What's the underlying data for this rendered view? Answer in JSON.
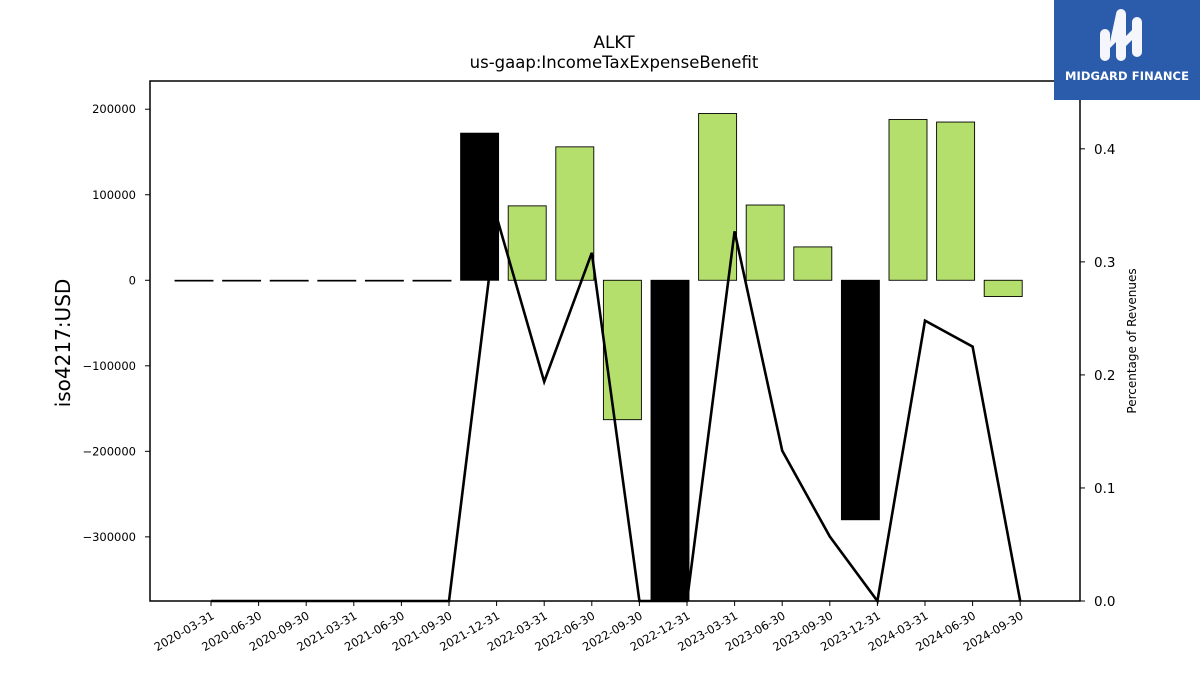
{
  "chart_data": {
    "type": "bar",
    "title": "ALKT",
    "subtitle": "us-gaap:IncomeTaxExpenseBenefit",
    "ylabel": "iso4217:USD",
    "y2label": "Percentage of Revenues",
    "categories": [
      "2020-03-31",
      "2020-06-30",
      "2020-09-30",
      "2021-03-31",
      "2021-06-30",
      "2021-09-30",
      "2021-12-31",
      "2022-03-31",
      "2022-06-30",
      "2022-09-30",
      "2022-12-31",
      "2023-03-31",
      "2023-06-30",
      "2023-09-30",
      "2023-12-31",
      "2024-03-31",
      "2024-06-30",
      "2024-09-30"
    ],
    "ylim": [
      -375000,
      233000
    ],
    "y2lim": [
      0,
      0.46
    ],
    "yticks": [
      -300000,
      -200000,
      -100000,
      0,
      100000,
      200000
    ],
    "ytick_labels": [
      "−300000",
      "−200000",
      "−100000",
      "0",
      "100000",
      "200000"
    ],
    "y2ticks": [
      0.0,
      0.1,
      0.2,
      0.3,
      0.4
    ],
    "y2tick_labels": [
      "0.0",
      "0.1",
      "0.2",
      "0.3",
      "0.4"
    ],
    "series": [
      {
        "values": [
          0,
          0,
          0,
          0,
          0,
          0,
          172000,
          87000,
          156000,
          -163000,
          -375000,
          195000,
          88000,
          39000,
          -280000,
          188000,
          185000,
          -19000
        ],
        "colors": [
          "#000000",
          "#000000",
          "#000000",
          "#000000",
          "#000000",
          "#000000",
          "#000000",
          "#b5df6c",
          "#b5df6c",
          "#b5df6c",
          "#000000",
          "#b5df6c",
          "#b5df6c",
          "#b5df6c",
          "#000000",
          "#b5df6c",
          "#b5df6c",
          "#b5df6c"
        ]
      },
      {
        "type": "line",
        "axis": "right",
        "values": [
          0.0,
          0.0,
          0.0,
          0.0,
          0.0,
          0.0,
          0.34,
          0.194,
          0.308,
          0.0,
          0.0,
          0.327,
          0.133,
          0.057,
          0.0,
          0.248,
          0.225,
          0.0
        ]
      }
    ],
    "grid": false
  },
  "logo": {
    "text": "MIDGARD FINANCE"
  }
}
